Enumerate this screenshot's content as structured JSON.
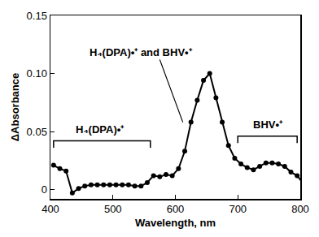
{
  "chart_data": {
    "type": "line",
    "x": [
      400,
      410,
      420,
      430,
      440,
      450,
      460,
      470,
      480,
      490,
      500,
      510,
      520,
      530,
      540,
      550,
      560,
      570,
      580,
      590,
      600,
      610,
      620,
      630,
      640,
      650,
      660,
      670,
      680,
      690,
      700,
      710,
      720,
      730,
      740,
      750,
      760,
      770,
      780,
      790,
      800
    ],
    "values": [
      0.021,
      0.018,
      0.016,
      -0.003,
      0.001,
      0.003,
      0.004,
      0.004,
      0.004,
      0.004,
      0.004,
      0.004,
      0.004,
      0.003,
      0.003,
      0.006,
      0.012,
      0.011,
      0.013,
      0.012,
      0.018,
      0.033,
      0.058,
      0.077,
      0.094,
      0.1,
      0.079,
      0.058,
      0.038,
      0.027,
      0.022,
      0.019,
      0.017,
      0.02,
      0.023,
      0.023,
      0.022,
      0.02,
      0.015,
      0.012,
      0.005
    ],
    "color": "#000000",
    "marker": "circle",
    "line_style": "solid",
    "xlabel": "Wavelength, nm",
    "ylabel": "ΔAbsorbance",
    "xlim": [
      400,
      800
    ],
    "ylim": [
      -0.008,
      0.15
    ],
    "xticks": [
      400,
      500,
      600,
      700,
      800
    ],
    "yticks": [
      0,
      0.05,
      {
        "value": 0.1,
        "label": "0.10"
      },
      0.15
    ],
    "grid": false,
    "annotations": [
      {
        "text": "H₄(DPA)•⁺ and BHV•⁺"
      },
      {
        "text": "H₄(DPA)•⁺"
      },
      {
        "text": "BHV•⁺"
      }
    ]
  }
}
